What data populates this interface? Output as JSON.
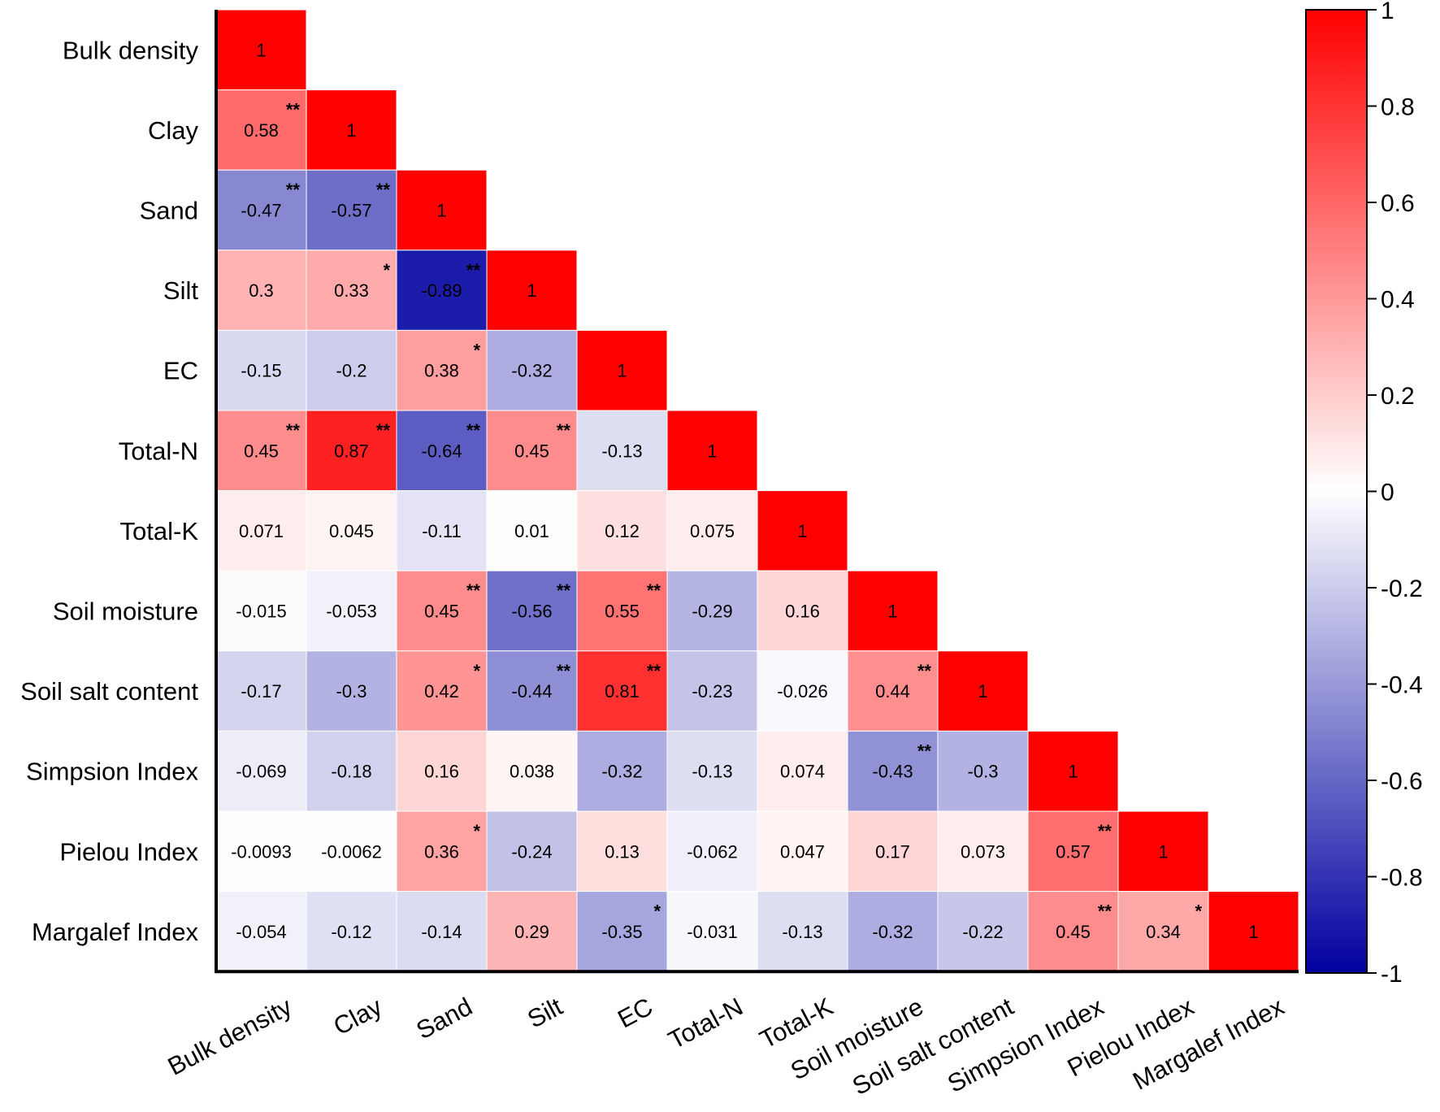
{
  "chart_data": {
    "type": "heatmap",
    "title": "",
    "variables": [
      "Bulk density",
      "Clay",
      "Sand",
      "Silt",
      "EC",
      "Total-N",
      "Total-K",
      "Soil moisture",
      "Soil salt content",
      "Simpsion Index",
      "Pielou Index",
      "Margalef Index"
    ],
    "matrix_lower": [
      [
        1
      ],
      [
        0.58,
        1
      ],
      [
        -0.47,
        -0.57,
        1
      ],
      [
        0.3,
        0.33,
        -0.89,
        1
      ],
      [
        -0.15,
        -0.2,
        0.38,
        -0.32,
        1
      ],
      [
        0.45,
        0.87,
        -0.64,
        0.45,
        -0.13,
        1
      ],
      [
        0.071,
        0.045,
        -0.11,
        0.01,
        0.12,
        0.075,
        1
      ],
      [
        -0.015,
        -0.053,
        0.45,
        -0.56,
        0.55,
        -0.29,
        0.16,
        1
      ],
      [
        -0.17,
        -0.3,
        0.42,
        -0.44,
        0.81,
        -0.23,
        -0.026,
        0.44,
        1
      ],
      [
        -0.069,
        -0.18,
        0.16,
        0.038,
        -0.32,
        -0.13,
        0.074,
        -0.43,
        -0.3,
        1
      ],
      [
        -0.0093,
        -0.0062,
        0.36,
        -0.24,
        0.13,
        -0.062,
        0.047,
        0.17,
        0.073,
        0.57,
        1
      ],
      [
        -0.054,
        -0.12,
        -0.14,
        0.29,
        -0.35,
        -0.031,
        -0.13,
        -0.32,
        -0.22,
        0.45,
        0.34,
        1
      ]
    ],
    "labels_lower": [
      [
        "1"
      ],
      [
        "0.58",
        "1"
      ],
      [
        "-0.47",
        "-0.57",
        "1"
      ],
      [
        "0.3",
        "0.33",
        "-0.89",
        "1"
      ],
      [
        "-0.15",
        "-0.2",
        "0.38",
        "-0.32",
        "1"
      ],
      [
        "0.45",
        "0.87",
        "-0.64",
        "0.45",
        "-0.13",
        "1"
      ],
      [
        "0.071",
        "0.045",
        "-0.11",
        "0.01",
        "0.12",
        "0.075",
        "1"
      ],
      [
        "-0.015",
        "-0.053",
        "0.45",
        "-0.56",
        "0.55",
        "-0.29",
        "0.16",
        "1"
      ],
      [
        "-0.17",
        "-0.3",
        "0.42",
        "-0.44",
        "0.81",
        "-0.23",
        "-0.026",
        "0.44",
        "1"
      ],
      [
        "-0.069",
        "-0.18",
        "0.16",
        "0.038",
        "-0.32",
        "-0.13",
        "0.074",
        "-0.43",
        "-0.3",
        "1"
      ],
      [
        "-0.0093",
        "-0.0062",
        "0.36",
        "-0.24",
        "0.13",
        "-0.062",
        "0.047",
        "0.17",
        "0.073",
        "0.57",
        "1"
      ],
      [
        "-0.054",
        "-0.12",
        "-0.14",
        "0.29",
        "-0.35",
        "-0.031",
        "-0.13",
        "-0.32",
        "-0.22",
        "0.45",
        "0.34",
        "1"
      ]
    ],
    "significance_lower": [
      [
        ""
      ],
      [
        "**",
        ""
      ],
      [
        "**",
        "**",
        ""
      ],
      [
        "",
        "*",
        "**",
        ""
      ],
      [
        "",
        "",
        "*",
        "",
        ""
      ],
      [
        "**",
        "**",
        "**",
        "**",
        "",
        ""
      ],
      [
        "",
        "",
        "",
        "",
        "",
        "",
        ""
      ],
      [
        "",
        "",
        "**",
        "**",
        "**",
        "",
        "",
        ""
      ],
      [
        "",
        "",
        "*",
        "**",
        "**",
        "",
        "",
        "**",
        ""
      ],
      [
        "",
        "",
        "",
        "",
        "",
        "",
        "",
        "**",
        "",
        ""
      ],
      [
        "",
        "",
        "*",
        "",
        "",
        "",
        "",
        "",
        "",
        "**",
        ""
      ],
      [
        "",
        "",
        "",
        "",
        "*",
        "",
        "",
        "",
        "",
        "**",
        "*",
        ""
      ]
    ],
    "colorbar": {
      "range": [
        -1,
        1
      ],
      "ticks": [
        "1",
        "0.8",
        "0.6",
        "0.4",
        "0.2",
        "0",
        "-0.2",
        "-0.4",
        "-0.6",
        "-0.8",
        "-1"
      ],
      "colors": {
        "negative": "#0000a0",
        "zero": "#ffffff",
        "positive": "#ff0000"
      }
    }
  }
}
